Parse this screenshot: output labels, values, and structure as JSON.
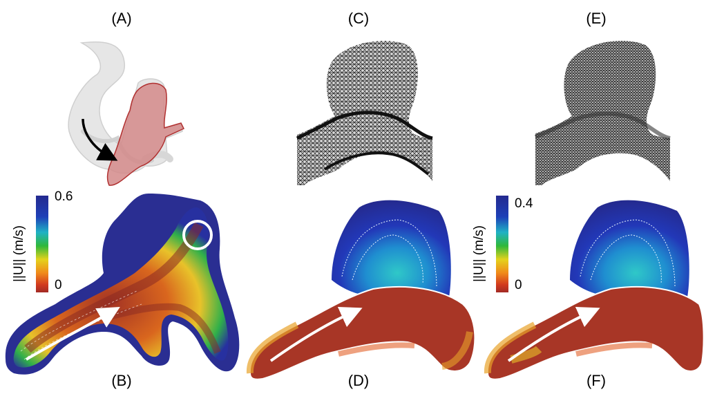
{
  "panels": {
    "a": "(A)",
    "b": "(B)",
    "c": "(C)",
    "d": "(D)",
    "e": "(E)",
    "f": "(F)"
  },
  "colorbar_left": {
    "title": "||U||  (m/s)",
    "max": "0.6",
    "min": "0"
  },
  "colorbar_right": {
    "title": "||U||  (m/s)",
    "max": "0.4",
    "min": "0"
  },
  "colors": {
    "vessel": "#e4e4e4",
    "aneurysm": "#d88c8c",
    "high_velocity": "#2a2e92",
    "low_velocity": "#a8332a"
  }
}
